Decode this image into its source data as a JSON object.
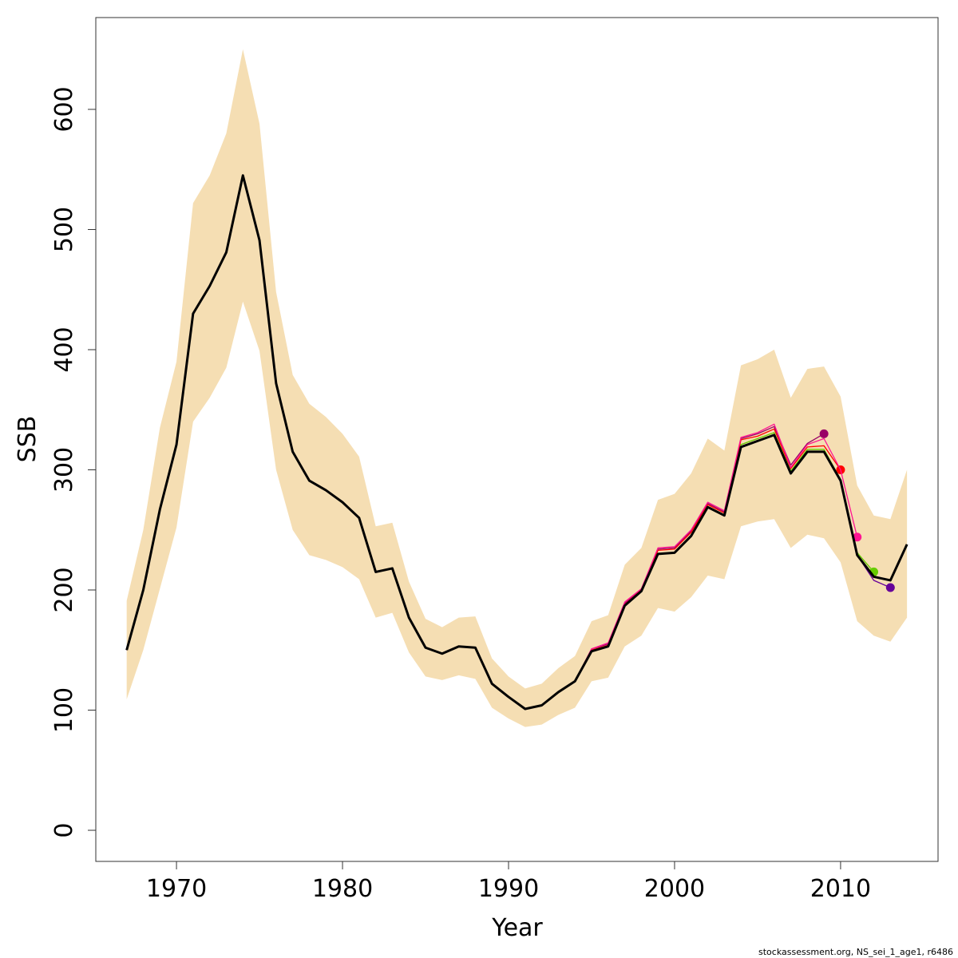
{
  "chart_data": {
    "type": "line",
    "xlabel": "Year",
    "ylabel": "SSB",
    "footer": "stockassessment.org, NS_sei_1_age1, r6486",
    "x": [
      1967,
      1968,
      1969,
      1970,
      1971,
      1972,
      1973,
      1974,
      1975,
      1976,
      1977,
      1978,
      1979,
      1980,
      1981,
      1982,
      1983,
      1984,
      1985,
      1986,
      1987,
      1988,
      1989,
      1990,
      1991,
      1992,
      1993,
      1994,
      1995,
      1996,
      1997,
      1998,
      1999,
      2000,
      2001,
      2002,
      2003,
      2004,
      2005,
      2006,
      2007,
      2008,
      2009,
      2010,
      2011,
      2012,
      2013,
      2014
    ],
    "band": {
      "color": "#f5deb3",
      "upper": [
        191,
        250,
        335,
        390,
        522,
        545,
        580,
        650,
        588,
        448,
        379,
        355,
        344,
        330,
        311,
        253,
        256,
        207,
        176,
        169,
        177,
        178,
        143,
        128,
        118,
        122,
        135,
        145,
        174,
        179,
        221,
        235,
        275,
        280,
        297,
        326,
        316,
        387,
        392,
        400,
        360,
        384,
        386,
        361,
        287,
        262,
        259,
        300
      ],
      "lower": [
        109,
        150,
        201,
        252,
        340,
        360,
        385,
        440,
        399,
        300,
        250,
        229,
        225,
        219,
        209,
        177,
        181,
        148,
        128,
        125,
        129,
        126,
        102,
        93,
        86,
        88,
        96,
        102,
        124,
        127,
        153,
        162,
        185,
        182,
        194,
        212,
        209,
        253,
        257,
        259,
        235,
        246,
        243,
        223,
        174,
        162,
        157,
        177
      ]
    },
    "series": [
      {
        "color": "#990066",
        "end_marker": true,
        "values": [
          150,
          200,
          267,
          321,
          430,
          453,
          481,
          545,
          491,
          372,
          315,
          291,
          283,
          273,
          260,
          215,
          218,
          177,
          152,
          147,
          153,
          152,
          122,
          111,
          101,
          104,
          115,
          124,
          151,
          155,
          189,
          200,
          234,
          235,
          249,
          272,
          265,
          326,
          330,
          336,
          304,
          322,
          330,
          null,
          null,
          null,
          null,
          null
        ]
      },
      {
        "color": "#ff0000",
        "end_marker": true,
        "values": [
          150,
          200,
          267,
          321,
          430,
          453,
          481,
          545,
          491,
          372,
          315,
          291,
          283,
          273,
          260,
          215,
          218,
          177,
          152,
          147,
          153,
          152,
          122,
          111,
          101,
          104,
          115,
          124,
          150,
          154,
          188,
          200,
          233,
          234,
          248,
          271,
          264,
          325,
          328,
          334,
          301,
          319,
          320,
          300,
          null,
          null,
          null,
          null
        ]
      },
      {
        "color": "#ff1493",
        "end_marker": true,
        "values": [
          150,
          200,
          267,
          321,
          430,
          453,
          481,
          545,
          491,
          372,
          315,
          291,
          283,
          273,
          260,
          215,
          218,
          177,
          152,
          147,
          153,
          152,
          122,
          111,
          101,
          104,
          115,
          124,
          151,
          156,
          190,
          201,
          235,
          236,
          250,
          273,
          266,
          327,
          331,
          338,
          302,
          321,
          326,
          300,
          244,
          null,
          null,
          null
        ]
      },
      {
        "color": "#66cc00",
        "end_marker": true,
        "values": [
          150,
          200,
          267,
          321,
          430,
          453,
          481,
          545,
          491,
          372,
          315,
          291,
          283,
          273,
          260,
          215,
          218,
          177,
          152,
          147,
          153,
          152,
          122,
          111,
          101,
          104,
          115,
          124,
          149,
          153,
          187,
          199,
          230,
          231,
          245,
          269,
          262,
          321,
          326,
          331,
          299,
          317,
          317,
          292,
          231,
          215,
          null,
          null
        ]
      },
      {
        "color": "#660099",
        "end_marker": true,
        "values": [
          150,
          200,
          267,
          321,
          430,
          453,
          481,
          545,
          491,
          372,
          315,
          291,
          283,
          273,
          260,
          215,
          218,
          177,
          152,
          147,
          153,
          152,
          122,
          111,
          101,
          104,
          115,
          124,
          149,
          153,
          187,
          199,
          230,
          231,
          245,
          269,
          262,
          319,
          324,
          329,
          297,
          315,
          315,
          290,
          229,
          208,
          202,
          null
        ]
      },
      {
        "color": "#000000",
        "end_marker": false,
        "values": [
          150,
          200,
          267,
          321,
          430,
          453,
          481,
          545,
          491,
          372,
          315,
          291,
          283,
          273,
          260,
          215,
          218,
          177,
          152,
          147,
          153,
          152,
          122,
          111,
          101,
          104,
          115,
          124,
          149,
          153,
          187,
          199,
          230,
          231,
          245,
          269,
          262,
          319,
          324,
          329,
          297,
          315,
          315,
          291,
          229,
          211,
          208,
          238
        ]
      }
    ],
    "xlim": [
      1965.14,
      2015.87
    ],
    "xticks": [
      1970,
      1980,
      1990,
      2000,
      2010
    ],
    "ylim": [
      -25.9,
      676.4
    ],
    "yticks": [
      0,
      100,
      200,
      300,
      400,
      500,
      600
    ]
  }
}
